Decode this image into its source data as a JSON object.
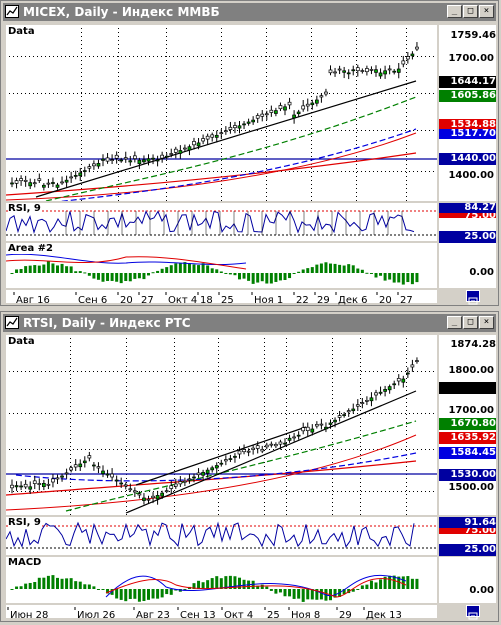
{
  "colors": {
    "titlebar": "#808080",
    "black_trend": "#000000",
    "green_ma": "#008000",
    "red_ma": "#e00000",
    "blue_ma": "#0000e0",
    "support_line": "#0000a0"
  },
  "window1": {
    "title": "MICEX, Daily - Индекс ММВБ",
    "icon": "chart-window-icon",
    "buttons": {
      "minimize": "_",
      "maximize": "□",
      "close": "×"
    },
    "price_panel_label": "Data",
    "rsi_label": "RSI, 9",
    "area_label": "Area #2",
    "price_ticks": [
      "1700.00",
      "1400.00"
    ],
    "price_tags": {
      "last": "1759.46",
      "black": "1644.17",
      "green": "1605.86",
      "red": "1534.88",
      "blue": "1517.70",
      "support": "1440.00"
    },
    "rsi_tags": {
      "value": "84.27",
      "upper": "75.00",
      "lower": "25.00"
    },
    "area_tags": {
      "zero": "0.00"
    },
    "x_labels": [
      "Авг 16",
      "Сен 6",
      "20",
      "27",
      "Окт 4",
      "18",
      "25",
      "Ноя 1",
      "22",
      "29",
      "Дек 6",
      "20",
      "27"
    ],
    "scroll_icon": "scroll-right-icon"
  },
  "window2": {
    "title": "RTSI, Daily - Индекс РТС",
    "icon": "chart-window-icon",
    "buttons": {
      "minimize": "_",
      "maximize": "□",
      "close": "×"
    },
    "price_panel_label": "Data",
    "rsi_label": "RSI, 9",
    "macd_label": "MACD",
    "price_ticks": [
      "1800.00",
      "1700.00",
      "1500.00"
    ],
    "price_tags": {
      "last": "1874.28",
      "green": "1670.80",
      "red": "1635.92",
      "blue": "1584.45",
      "support": "1530.00"
    },
    "rsi_tags": {
      "value": "91.64",
      "upper": "75.00",
      "lower": "25.00"
    },
    "macd_tags": {
      "zero": "0.00"
    },
    "x_labels": [
      "Июн 28",
      "Июл 26",
      "Авг 23",
      "Сен 13",
      "Окт 4",
      "25",
      "Ноя 8",
      "29",
      "Дек 13"
    ],
    "scroll_icon": "scroll-right-icon"
  }
}
